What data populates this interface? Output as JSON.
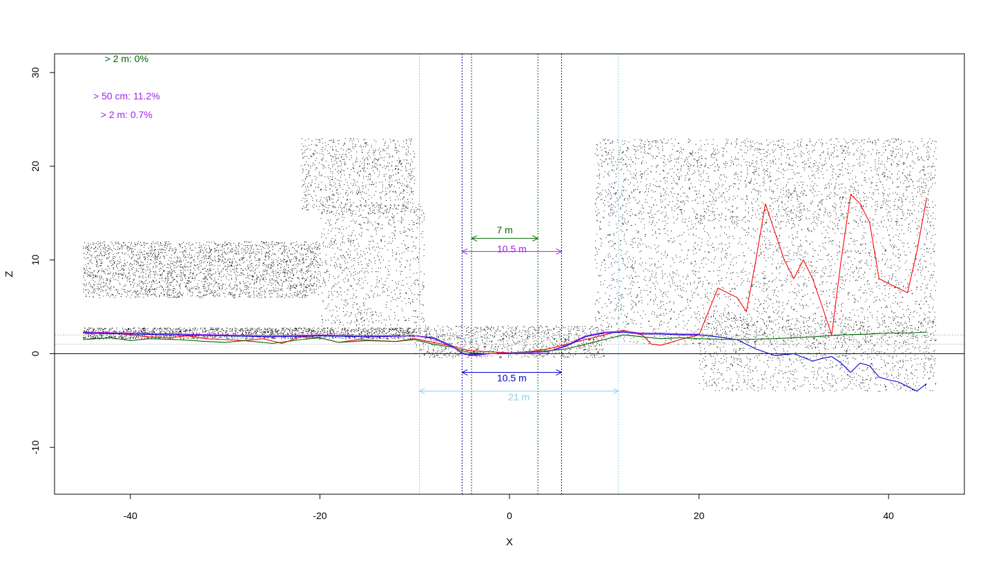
{
  "chart_data": {
    "type": "scatter",
    "title": "",
    "xlabel": "X",
    "ylabel": "Z",
    "xlim": [
      -48,
      48
    ],
    "ylim": [
      -15,
      32
    ],
    "x_ticks": [
      -40,
      -20,
      0,
      20,
      40
    ],
    "y_ticks": [
      -10,
      0,
      10,
      20,
      30
    ],
    "x_tick_labels": [
      "-40",
      "-20",
      "0",
      "20",
      "40"
    ],
    "y_tick_labels": [
      "-10",
      "0",
      "10",
      "20",
      "30"
    ],
    "grid": false,
    "legend": "none",
    "annotations": [
      {
        "text": "> 2 m: 0%",
        "color": "#006400",
        "x": -40.4,
        "y": 31.5
      },
      {
        "text": "> 50 cm: 11.2%",
        "color": "#a020f0",
        "x": -40.4,
        "y": 27.5
      },
      {
        "text": "> 2 m: 0.7%",
        "color": "#a020f0",
        "x": -40.4,
        "y": 25.5
      }
    ],
    "width_markers": [
      {
        "label": "7 m",
        "color": "#006400",
        "x1": -4,
        "x2": 3,
        "y": 12.3,
        "label_y": 13.2
      },
      {
        "label": "10.5 m",
        "color": "#a020f0",
        "x1": -5,
        "x2": 5.5,
        "y": 10.9,
        "label_y": 11.2
      },
      {
        "label": "10.5 m",
        "color": "#0000cd",
        "x1": -5,
        "x2": 5.5,
        "y": -2,
        "label_y": -2.6
      },
      {
        "label": "21 m",
        "color": "#87ceeb",
        "x1": -9.5,
        "x2": 11.5,
        "y": -4,
        "label_y": -4.6
      }
    ],
    "vertical_lines": [
      {
        "x": -9.5,
        "color": "#87ceeb"
      },
      {
        "x": 11.5,
        "color": "#87ceeb"
      },
      {
        "x": -5,
        "color": "#00008b"
      },
      {
        "x": 5.5,
        "color": "#0000cd"
      },
      {
        "x": -4,
        "color": "#006400"
      },
      {
        "x": 3,
        "color": "#006400"
      }
    ],
    "horizontal_lines": [
      {
        "y": 0,
        "color": "#000000",
        "style": "solid"
      },
      {
        "y": 2,
        "color": "#bbbbbb",
        "style": "dotted"
      },
      {
        "y": 1,
        "color": "#bbbbbb",
        "style": "dotted"
      }
    ],
    "series": [
      {
        "color": "#ff0000",
        "x": [
          -45,
          -42,
          -40,
          -38,
          -36,
          -34,
          -32,
          -30,
          -28,
          -26,
          -24,
          -22,
          -20,
          -18,
          -16,
          -14,
          -12,
          -10,
          -8,
          -6,
          -5,
          -4,
          -2,
          0,
          2,
          4,
          6,
          8,
          10,
          12,
          14,
          15,
          16,
          18,
          20,
          21,
          22,
          24,
          25,
          26,
          27,
          28,
          29,
          30,
          31,
          32,
          33,
          34,
          35,
          36,
          37,
          38,
          39,
          40,
          41,
          42,
          43,
          44
        ],
        "y": [
          2.3,
          2.2,
          2.0,
          1.8,
          1.7,
          1.9,
          1.6,
          1.5,
          1.4,
          1.6,
          1.1,
          1.8,
          1.7,
          1.2,
          1.5,
          1.4,
          1.3,
          1.6,
          1.2,
          0.8,
          0.5,
          0.3,
          0.2,
          0.1,
          0.2,
          0.5,
          1.0,
          1.5,
          2.0,
          2.5,
          2.0,
          1.0,
          0.9,
          1.5,
          2.0,
          4.5,
          7.0,
          6.0,
          4.5,
          10.0,
          16.0,
          13.0,
          10.0,
          8.0,
          10.0,
          8.0,
          5.0,
          2.0,
          10.0,
          17.0,
          16.0,
          14.0,
          8.0,
          7.5,
          7.0,
          6.5,
          11.0,
          16.5
        ]
      },
      {
        "color": "#0000cd",
        "x": [
          -45,
          -40,
          -35,
          -30,
          -25,
          -20,
          -15,
          -10,
          -8,
          -6,
          -5,
          -4,
          -2,
          0,
          2,
          4,
          6,
          8,
          10,
          12,
          14,
          16,
          18,
          20,
          22,
          24,
          26,
          28,
          30,
          32,
          33,
          34,
          35,
          36,
          37,
          38,
          39,
          40,
          41,
          42,
          43,
          44
        ],
        "y": [
          2.2,
          2.1,
          2.0,
          1.9,
          1.8,
          1.9,
          1.8,
          1.9,
          1.7,
          0.8,
          0.0,
          -0.2,
          0.0,
          0.1,
          0.1,
          0.2,
          0.8,
          1.8,
          2.2,
          2.3,
          2.1,
          2.1,
          2.0,
          2.0,
          1.8,
          1.5,
          0.5,
          -0.2,
          0.0,
          -0.8,
          -0.5,
          -0.3,
          -1.0,
          -2.0,
          -1.0,
          -1.3,
          -2.5,
          -2.8,
          -3.0,
          -3.5,
          -4.0,
          -3.2
        ]
      },
      {
        "color": "#006400",
        "x": [
          -45,
          -42,
          -40,
          -38,
          -35,
          -32,
          -30,
          -28,
          -25,
          -22,
          -20,
          -18,
          -15,
          -12,
          -10,
          -8,
          -6,
          -5,
          -4,
          -2,
          0,
          2,
          4,
          6,
          8,
          10,
          12,
          14,
          16,
          18,
          20,
          24,
          28,
          30,
          32,
          35,
          38,
          40,
          42,
          44
        ],
        "y": [
          1.5,
          1.7,
          1.4,
          1.6,
          1.5,
          1.3,
          1.2,
          1.4,
          1.1,
          1.5,
          1.7,
          1.2,
          1.4,
          1.3,
          1.5,
          1.0,
          0.7,
          0.3,
          0.1,
          0.0,
          0.1,
          0.2,
          0.3,
          0.5,
          1.0,
          1.5,
          2.0,
          1.8,
          1.6,
          1.7,
          1.6,
          1.5,
          1.6,
          1.7,
          1.8,
          2.0,
          2.1,
          2.2,
          2.2,
          2.3
        ]
      },
      {
        "color": "#a020f0",
        "x": [
          -45,
          -40,
          -35,
          -30,
          -25,
          -20,
          -15,
          -10,
          -8,
          -6,
          -5,
          -4,
          -2,
          0,
          2,
          4,
          6,
          8,
          10,
          12,
          14,
          16,
          18,
          20
        ],
        "y": [
          2.3,
          2.2,
          2.1,
          2.0,
          1.9,
          2.0,
          1.9,
          1.9,
          1.6,
          0.7,
          0.1,
          -0.1,
          0.0,
          0.1,
          0.1,
          0.2,
          0.9,
          1.9,
          2.3,
          2.4,
          2.2,
          2.2,
          2.1,
          2.1
        ]
      }
    ],
    "point_clouds": [
      {
        "x_range": [
          -45,
          -20
        ],
        "z_range": [
          6,
          12
        ],
        "density": 2600
      },
      {
        "x_range": [
          -45,
          -10
        ],
        "z_range": [
          1.6,
          2.8
        ],
        "density": 1800
      },
      {
        "x_range": [
          -22,
          -10
        ],
        "z_range": [
          15,
          23
        ],
        "density": 900
      },
      {
        "x_range": [
          -20,
          -9
        ],
        "z_range": [
          3,
          16
        ],
        "density": 900
      },
      {
        "x_range": [
          -10,
          10
        ],
        "z_range": [
          -0.4,
          3
        ],
        "density": 1000
      },
      {
        "x_range": [
          9,
          45
        ],
        "z_range": [
          14,
          23
        ],
        "density": 2400
      },
      {
        "x_range": [
          9,
          45
        ],
        "z_range": [
          1,
          14
        ],
        "density": 2400
      },
      {
        "x_range": [
          20,
          45
        ],
        "z_range": [
          -4,
          4
        ],
        "density": 1300
      }
    ]
  }
}
